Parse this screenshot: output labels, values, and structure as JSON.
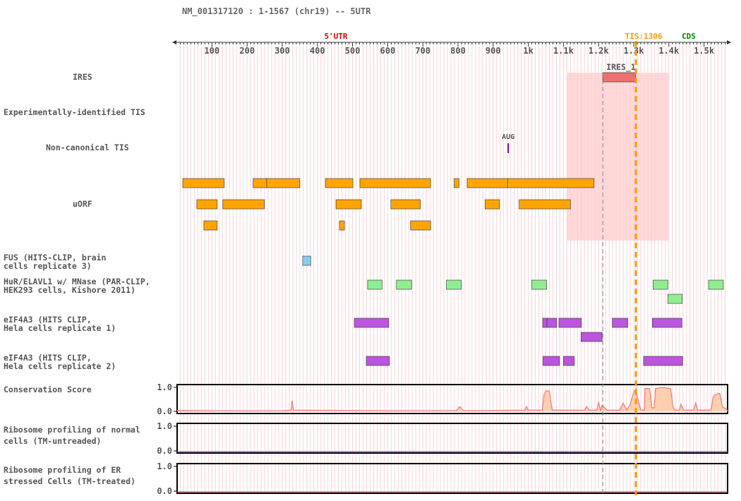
{
  "header": {
    "title": "NM_001317120 : 1-1567 (chr19) -- 5UTR"
  },
  "axis": {
    "start": 1,
    "end": 1567,
    "ticks": [
      {
        "pos": 100,
        "label": "100"
      },
      {
        "pos": 200,
        "label": "200"
      },
      {
        "pos": 300,
        "label": "300"
      },
      {
        "pos": 400,
        "label": "400"
      },
      {
        "pos": 500,
        "label": "500"
      },
      {
        "pos": 600,
        "label": "600"
      },
      {
        "pos": 700,
        "label": "700"
      },
      {
        "pos": 800,
        "label": "800"
      },
      {
        "pos": 900,
        "label": "900"
      },
      {
        "pos": 1000,
        "label": "1k"
      },
      {
        "pos": 1100,
        "label": "1.1k"
      },
      {
        "pos": 1200,
        "label": "1.2k"
      },
      {
        "pos": 1300,
        "label": "1.3k"
      },
      {
        "pos": 1400,
        "label": "1.4k"
      },
      {
        "pos": 1500,
        "label": "1.5k"
      }
    ]
  },
  "regions": {
    "utr_label": "5'UTR",
    "tis_label": "TIS:1306",
    "cds_label": "CDS",
    "tis_pos": 1306,
    "colors": {
      "utr": "#dd0000",
      "tis": "#ff9900",
      "cds": "#008800"
    }
  },
  "highlight": {
    "start": 1110,
    "end": 1400,
    "color": "#ffcccc"
  },
  "ires_marker": {
    "pos": 1212
  },
  "tracks": {
    "ires": {
      "label": "IRES",
      "features": [
        {
          "start": 1212,
          "end": 1305,
          "name": "IRES_1",
          "color": "#f07070"
        }
      ]
    },
    "exp_tis": {
      "label": "Experimentally-identified TIS",
      "features": []
    },
    "noncanonical_tis": {
      "label": "Non-canonical TIS",
      "features": [
        {
          "pos": 943,
          "name": "AUG",
          "color": "#880088"
        }
      ]
    },
    "uorf": {
      "label": "uORF",
      "color": "#ffa500",
      "rows": [
        [
          [
            17,
            135
          ],
          [
            217,
            256
          ],
          [
            256,
            350
          ],
          [
            423,
            501
          ],
          [
            521,
            722
          ],
          [
            789,
            803
          ],
          [
            826,
            942
          ],
          [
            941,
            1187
          ]
        ],
        [
          [
            57,
            115
          ],
          [
            131,
            249
          ],
          [
            453,
            525
          ],
          [
            609,
            693
          ],
          [
            877,
            918
          ],
          [
            974,
            1120
          ]
        ],
        [
          [
            77,
            115
          ],
          [
            463,
            477
          ],
          [
            665,
            722
          ]
        ]
      ]
    },
    "fus": {
      "label_lines": [
        "FUS (HITS-CLIP, brain",
        "cells replicate 3)"
      ],
      "color": "#87ceeb",
      "rows": [
        [
          [
            358,
            381
          ]
        ]
      ]
    },
    "hur": {
      "label_lines": [
        "HuR/ELAVL1 w/ MNase (PAR-CLIP,",
        "HEK293 cells, Kishore 2011)"
      ],
      "color": "#90ee90",
      "rows": [
        [
          [
            543,
            584
          ],
          [
            625,
            668
          ],
          [
            767,
            809
          ],
          [
            1010,
            1052
          ],
          [
            1355,
            1397
          ],
          [
            1513,
            1555
          ]
        ],
        [
          [
            1397,
            1438
          ]
        ]
      ]
    },
    "eif4a3_1": {
      "label_lines": [
        "eIF4A3 (HITS CLIP,",
        "Hela cells replicate 1)"
      ],
      "color": "#bb55dd",
      "rows": [
        [
          [
            505,
            603
          ],
          [
            1041,
            1053
          ],
          [
            1053,
            1081
          ],
          [
            1087,
            1151
          ],
          [
            1239,
            1283
          ],
          [
            1353,
            1437
          ]
        ],
        [
          [
            1150,
            1210
          ]
        ]
      ]
    },
    "eif4a3_2": {
      "label_lines": [
        "eIF4A3 (HITS CLIP,",
        "Hela cells replicate 2)"
      ],
      "color": "#bb55dd",
      "rows": [
        [
          [
            539,
            605
          ],
          [
            1042,
            1089
          ],
          [
            1100,
            1131
          ],
          [
            1328,
            1439
          ]
        ]
      ]
    },
    "conservation": {
      "label": "Conservation Score",
      "ymax_label": "1.0",
      "ymin_label": "0.0",
      "line_color": "#f08080",
      "fill_color": "#ffd0b0",
      "profile": [
        [
          1,
          0.04
        ],
        [
          80,
          0.03
        ],
        [
          200,
          0.02
        ],
        [
          300,
          0.03
        ],
        [
          325,
          0.05
        ],
        [
          328,
          0.45
        ],
        [
          332,
          0.05
        ],
        [
          600,
          0.03
        ],
        [
          795,
          0.03
        ],
        [
          805,
          0.2
        ],
        [
          815,
          0.03
        ],
        [
          990,
          0.05
        ],
        [
          995,
          0.2
        ],
        [
          1000,
          0.05
        ],
        [
          1040,
          0.05
        ],
        [
          1045,
          0.72
        ],
        [
          1050,
          0.85
        ],
        [
          1060,
          0.85
        ],
        [
          1068,
          0.05
        ],
        [
          1160,
          0.05
        ],
        [
          1166,
          0.2
        ],
        [
          1172,
          0.05
        ],
        [
          1195,
          0.05
        ],
        [
          1200,
          0.4
        ],
        [
          1205,
          0.05
        ],
        [
          1210,
          0.25
        ],
        [
          1225,
          0.05
        ],
        [
          1260,
          0.05
        ],
        [
          1270,
          0.35
        ],
        [
          1280,
          0.05
        ],
        [
          1290,
          0.3
        ],
        [
          1300,
          0.8
        ],
        [
          1306,
          0.95
        ],
        [
          1310,
          0.6
        ],
        [
          1320,
          0.05
        ],
        [
          1330,
          0.05
        ],
        [
          1332,
          0.95
        ],
        [
          1345,
          0.95
        ],
        [
          1352,
          0.15
        ],
        [
          1358,
          0.15
        ],
        [
          1362,
          0.95
        ],
        [
          1380,
          1.0
        ],
        [
          1405,
          0.95
        ],
        [
          1412,
          0.15
        ],
        [
          1420,
          0.05
        ],
        [
          1430,
          0.05
        ],
        [
          1434,
          0.3
        ],
        [
          1442,
          0.05
        ],
        [
          1470,
          0.05
        ],
        [
          1476,
          0.35
        ],
        [
          1482,
          0.05
        ],
        [
          1520,
          0.05
        ],
        [
          1526,
          0.6
        ],
        [
          1535,
          0.72
        ],
        [
          1545,
          0.75
        ],
        [
          1552,
          0.2
        ],
        [
          1567,
          0.05
        ]
      ]
    },
    "ribo_normal": {
      "label_lines": [
        "Ribosome profiling of normal",
        "cells (TM-untreaded)"
      ],
      "ymax_label": "1.0",
      "ymin_label": "0.0",
      "line_color": "#7755cc"
    },
    "ribo_er": {
      "label_lines": [
        "Ribosome profiling of ER",
        "stressed Cells (TM-treated)"
      ],
      "ymax_label": "1.0",
      "ymin_label": "0.0",
      "line_color": "#ee4466"
    }
  }
}
